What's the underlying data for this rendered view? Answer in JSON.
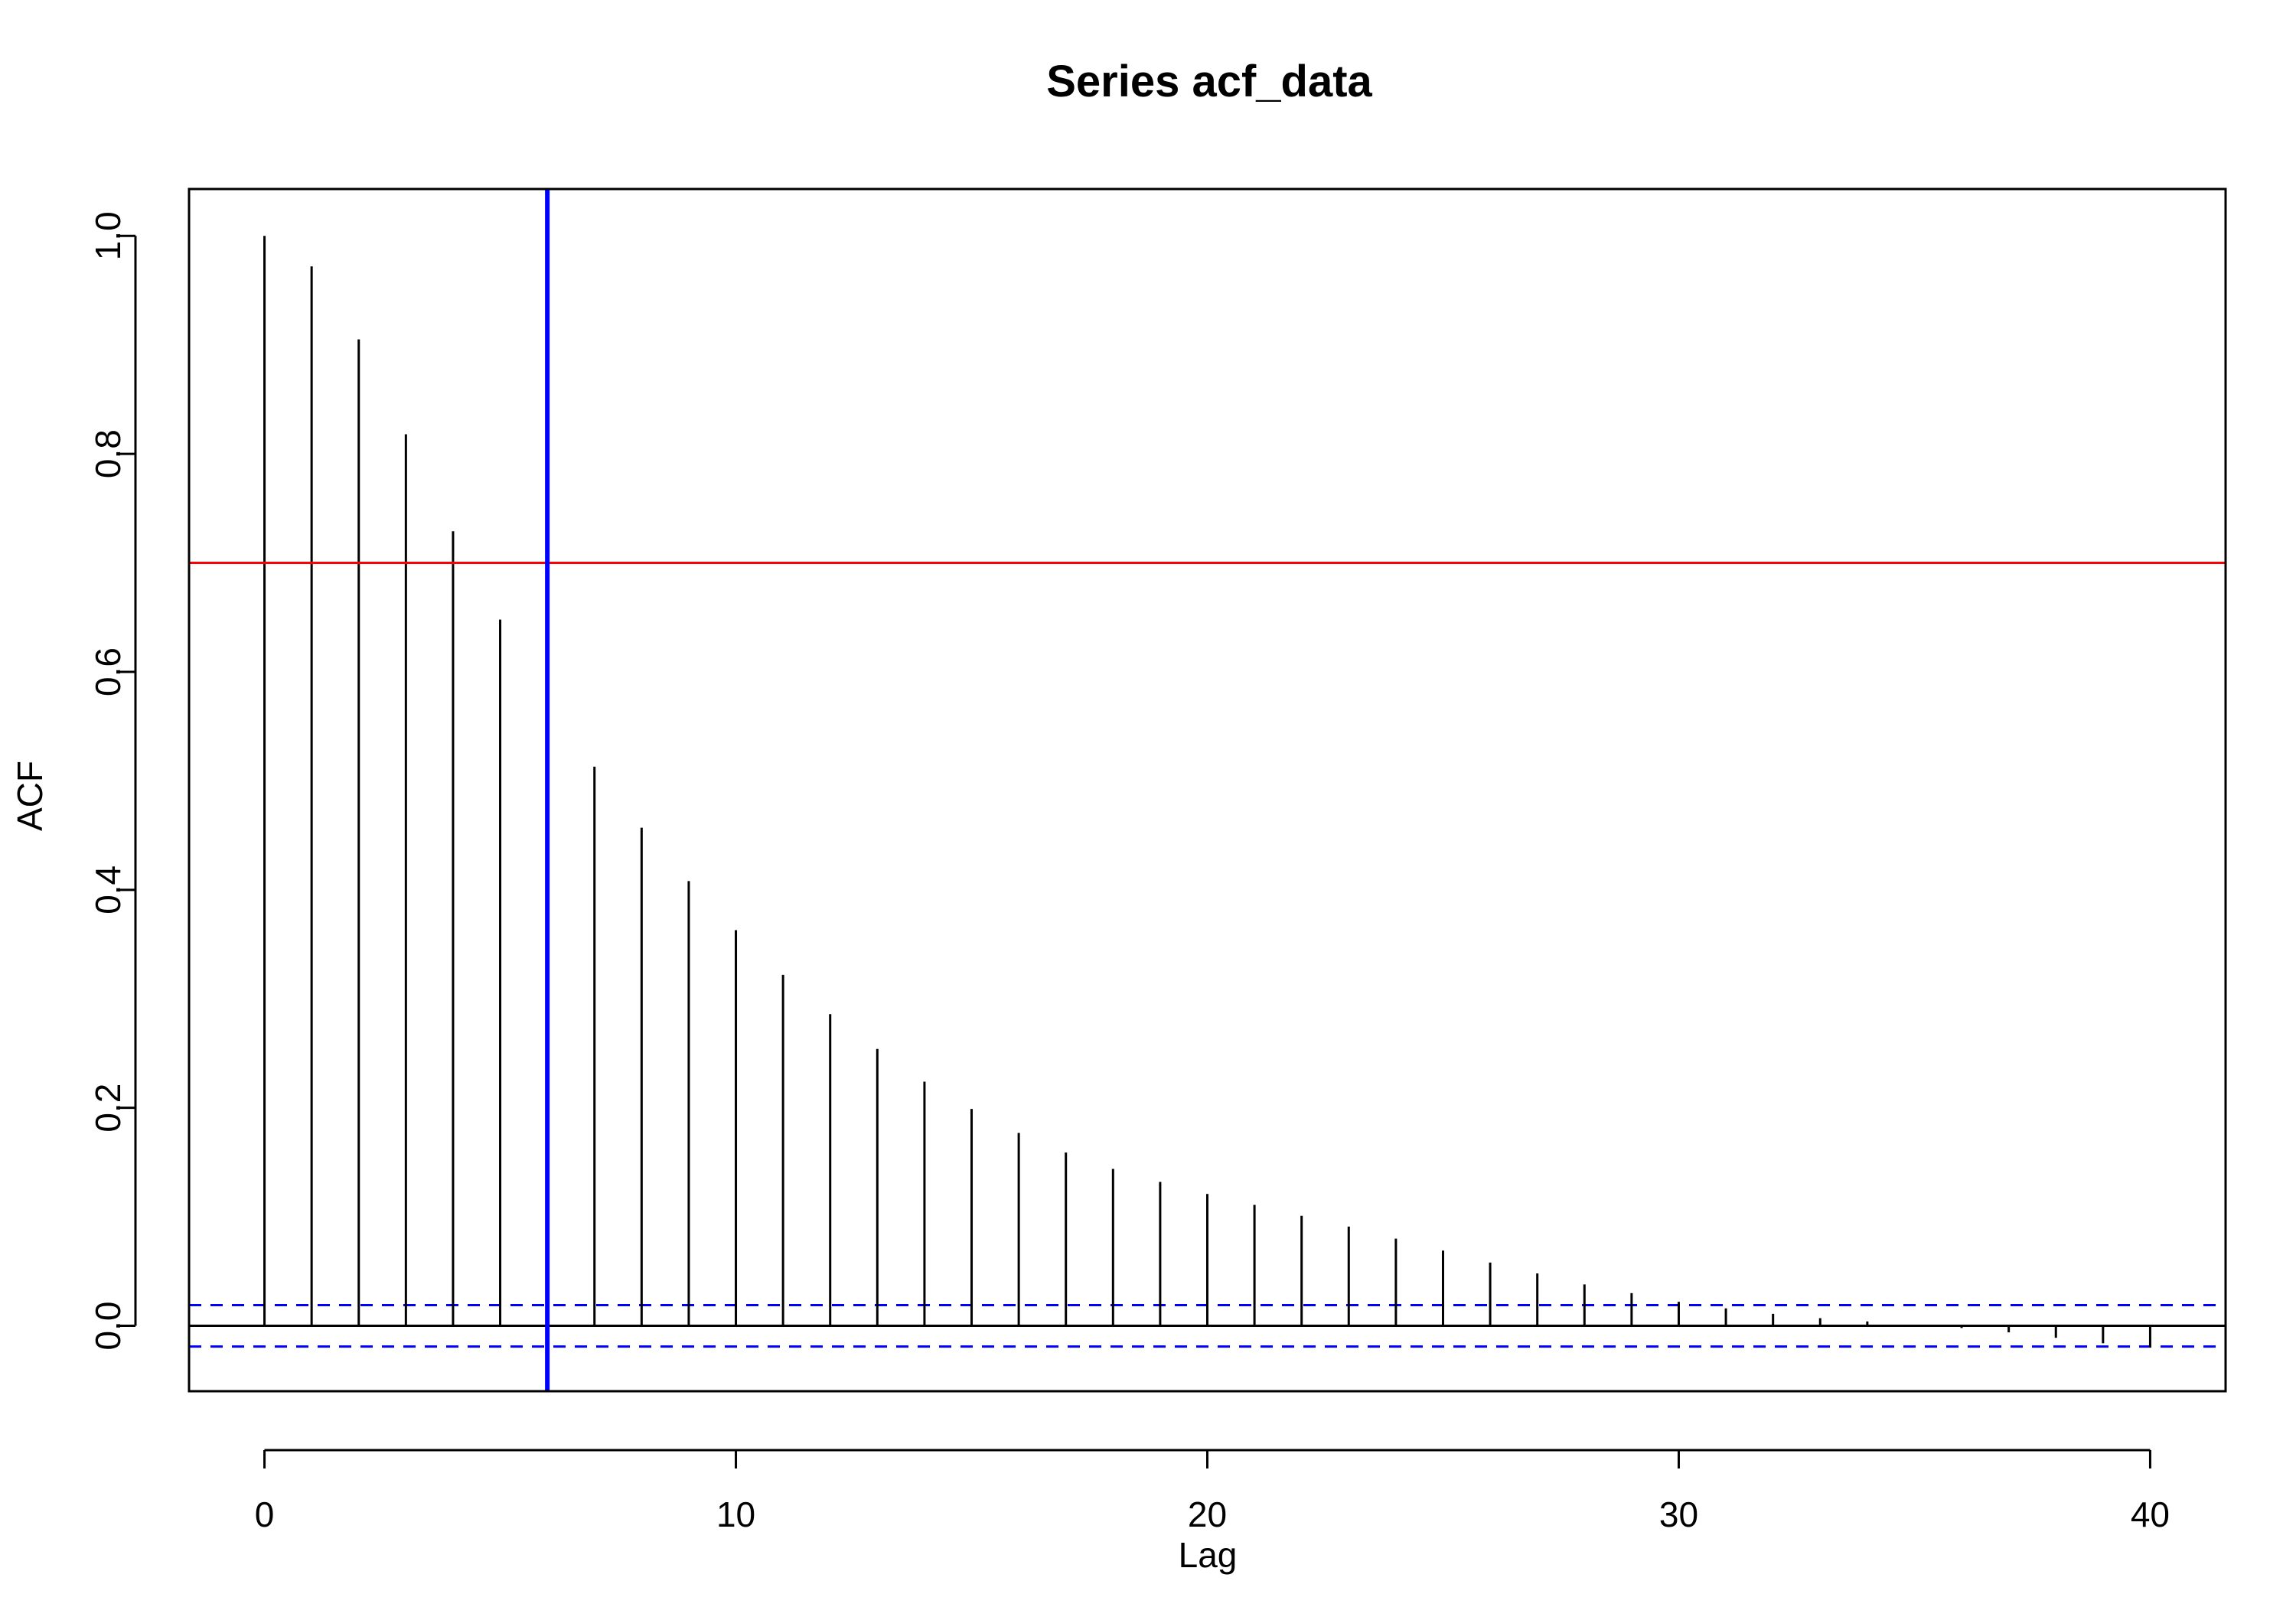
{
  "chart_data": {
    "type": "bar",
    "title": "Series  acf_data",
    "xlabel": "Lag",
    "ylabel": "ACF",
    "xlim": [
      -1.6,
      41.6
    ],
    "ylim": [
      -0.06,
      1.043
    ],
    "x_ticks": [
      0,
      10,
      20,
      30,
      40
    ],
    "y_ticks": [
      0.0,
      0.2,
      0.4,
      0.6,
      0.8,
      1.0
    ],
    "x_tick_labels": [
      "0",
      "10",
      "20",
      "30",
      "40"
    ],
    "y_tick_labels": [
      "0.0",
      "0.2",
      "0.4",
      "0.6",
      "0.8",
      "1.0"
    ],
    "grid": false,
    "lags": [
      0,
      1,
      2,
      3,
      4,
      5,
      6,
      7,
      8,
      9,
      10,
      11,
      12,
      13,
      14,
      15,
      16,
      17,
      18,
      19,
      20,
      21,
      22,
      23,
      24,
      25,
      26,
      27,
      28,
      29,
      30,
      31,
      32,
      33,
      34,
      35,
      36,
      37,
      38,
      39,
      40
    ],
    "acf": [
      1.0,
      0.972,
      0.905,
      0.818,
      0.729,
      0.648,
      0.578,
      0.513,
      0.457,
      0.408,
      0.363,
      0.322,
      0.286,
      0.254,
      0.224,
      0.199,
      0.177,
      0.159,
      0.144,
      0.132,
      0.121,
      0.111,
      0.101,
      0.091,
      0.08,
      0.069,
      0.058,
      0.048,
      0.038,
      0.03,
      0.022,
      0.016,
      0.011,
      0.007,
      0.004,
      0.001,
      -0.002,
      -0.006,
      -0.011,
      -0.016,
      -0.02
    ],
    "confidence_bounds": [
      0.019,
      -0.019
    ],
    "reference_lines": {
      "horizontal_red": {
        "y": 0.7,
        "color": "#ff0000"
      },
      "vertical_blue": {
        "x": 6,
        "color": "#0000ff"
      }
    },
    "colors": {
      "bars": "#000000",
      "confidence": "#0000ff",
      "zero_line": "#000000"
    }
  }
}
